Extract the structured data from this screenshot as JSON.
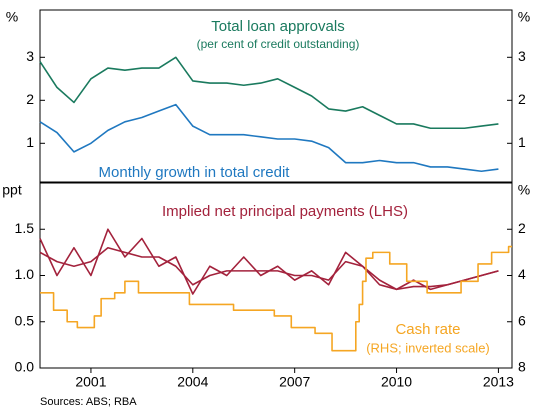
{
  "chart_data": [
    {
      "type": "line",
      "annotations": [
        "Total loan approvals",
        "(per cent of credit outstanding)",
        "Monthly growth in total credit"
      ],
      "y_unit": "%",
      "y2_unit": "%",
      "x": [
        1999.5,
        2000,
        2000.5,
        2001,
        2001.5,
        2002,
        2002.5,
        2003,
        2003.5,
        2004,
        2004.5,
        2005,
        2005.5,
        2006,
        2006.5,
        2007,
        2007.5,
        2008,
        2008.5,
        2009,
        2009.5,
        2010,
        2010.5,
        2011,
        2011.5,
        2012,
        2012.5,
        2013
      ],
      "xlim": [
        1999.5,
        2013.4
      ],
      "ylim": [
        0.1,
        4.1
      ],
      "yticks": [
        1,
        2,
        3
      ],
      "y2lim": [
        0.1,
        4.1
      ],
      "y2ticks": [
        1,
        2,
        3
      ],
      "series": [
        {
          "name": "Total loan approvals",
          "color": "#1a7a5e",
          "values": [
            2.9,
            2.3,
            1.95,
            2.5,
            2.75,
            2.7,
            2.75,
            2.75,
            3.0,
            2.45,
            2.4,
            2.4,
            2.35,
            2.4,
            2.5,
            2.3,
            2.1,
            1.8,
            1.75,
            1.85,
            1.65,
            1.45,
            1.45,
            1.35,
            1.35,
            1.35,
            1.4,
            1.45
          ]
        },
        {
          "name": "Monthly growth in total credit",
          "color": "#1f78c0",
          "values": [
            1.5,
            1.25,
            0.8,
            1.0,
            1.3,
            1.5,
            1.6,
            1.75,
            1.9,
            1.4,
            1.2,
            1.2,
            1.2,
            1.15,
            1.1,
            1.1,
            1.05,
            0.9,
            0.55,
            0.55,
            0.6,
            0.55,
            0.55,
            0.45,
            0.45,
            0.4,
            0.35,
            0.4
          ]
        }
      ]
    },
    {
      "type": "line",
      "annotations": [
        "Implied net principal payments (LHS)",
        "Cash rate",
        "(RHS; inverted scale)"
      ],
      "y_unit": "ppt",
      "y2_unit": "%",
      "x": [
        1999.5,
        2000,
        2000.5,
        2001,
        2001.5,
        2002,
        2002.5,
        2003,
        2003.5,
        2004,
        2004.5,
        2005,
        2005.5,
        2006,
        2006.5,
        2007,
        2007.5,
        2008,
        2008.5,
        2009,
        2009.5,
        2010,
        2010.5,
        2011,
        2011.5,
        2012,
        2012.5,
        2013
      ],
      "xlim": [
        1999.5,
        2013.4
      ],
      "xticks": [
        2001,
        2004,
        2007,
        2010,
        2013
      ],
      "ylim": [
        0,
        2
      ],
      "yticks": [
        {
          "value": 0,
          "label": "0.0"
        },
        0.5,
        {
          "value": 1,
          "label": "1.0"
        },
        1.5
      ],
      "y2lim": [
        8,
        0
      ],
      "y2ticks": [
        2,
        4,
        6,
        8
      ],
      "series": [
        {
          "name": "Implied net principal payments",
          "color": "#a3223c",
          "values": [
            1.4,
            1.0,
            1.3,
            1.0,
            1.5,
            1.2,
            1.4,
            1.1,
            1.2,
            0.8,
            1.1,
            1.0,
            1.2,
            1.0,
            1.1,
            0.95,
            1.05,
            0.9,
            1.25,
            1.1,
            0.9,
            0.85,
            0.95,
            0.85,
            0.9,
            0.95,
            1.0,
            1.05
          ]
        },
        {
          "name": "Implied net principal payments (smoothed)",
          "color": "#a3223c",
          "values": [
            1.25,
            1.15,
            1.1,
            1.15,
            1.3,
            1.25,
            1.2,
            1.2,
            1.1,
            0.9,
            1.0,
            1.05,
            1.05,
            1.05,
            1.05,
            1.0,
            1.0,
            0.95,
            1.15,
            1.1,
            0.95,
            0.85,
            0.88,
            0.88,
            0.9,
            0.95,
            1.0,
            1.05
          ]
        },
        {
          "name": "Cash rate",
          "color": "#f5a623",
          "axis": "y2",
          "step": true,
          "x": [
            1999.5,
            1999.9,
            2000.3,
            2000.6,
            2001.1,
            2001.3,
            2001.7,
            2002.0,
            2002.4,
            2003.9,
            2005.2,
            2006.4,
            2006.9,
            2007.6,
            2008.1,
            2008.8,
            2008.9,
            2009.0,
            2009.1,
            2009.3,
            2009.8,
            2010.3,
            2010.9,
            2011.9,
            2012.4,
            2012.8,
            2013.3
          ],
          "values": [
            4.75,
            5.5,
            6.0,
            6.25,
            5.75,
            5.0,
            4.75,
            4.25,
            4.75,
            5.25,
            5.5,
            5.75,
            6.25,
            6.5,
            7.25,
            6.0,
            5.25,
            4.25,
            3.25,
            3.0,
            3.5,
            4.25,
            4.75,
            4.25,
            3.5,
            3.0,
            2.75
          ]
        }
      ]
    }
  ],
  "source": "Sources: ABS; RBA"
}
